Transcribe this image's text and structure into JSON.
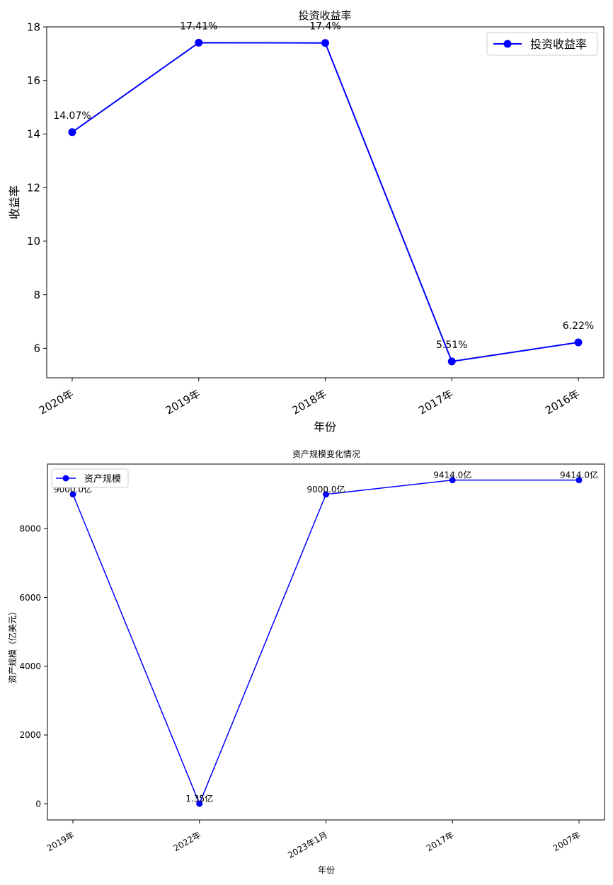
{
  "chart_data": [
    {
      "type": "line",
      "title": "投资收益率",
      "xlabel": "年份",
      "ylabel": "收益率",
      "categories": [
        "2020年",
        "2019年",
        "2018年",
        "2017年",
        "2016年"
      ],
      "series": [
        {
          "name": "投资收益率",
          "values": [
            14.07,
            17.41,
            17.4,
            5.51,
            6.22
          ],
          "color": "#0000ff"
        }
      ],
      "data_labels": [
        "14.07%",
        "17.41%",
        "17.4%",
        "5.51%",
        "6.22%"
      ],
      "ylim": [
        4.9,
        18.0
      ],
      "yticks": [
        6,
        8,
        10,
        12,
        14,
        16,
        18
      ],
      "ytick_labels": [
        "6",
        "8",
        "10",
        "12",
        "14",
        "16",
        "18"
      ],
      "grid": false,
      "legend_position": "top-right"
    },
    {
      "type": "line",
      "title": "资产规模变化情况",
      "xlabel": "年份",
      "ylabel": "资产规模（亿美元）",
      "categories": [
        "2019年",
        "2022年",
        "2023年1月",
        "2017年",
        "2007年"
      ],
      "series": [
        {
          "name": "资产规模",
          "values": [
            9000.0,
            1.35,
            9000.0,
            9414.0,
            9414.0
          ],
          "color": "#0000ff"
        }
      ],
      "data_labels": [
        "9000.0亿",
        "1.35亿",
        "9000.0亿",
        "9414.0亿",
        "9414.0亿"
      ],
      "ylim": [
        -470,
        9880
      ],
      "yticks": [
        0,
        2000,
        4000,
        6000,
        8000
      ],
      "ytick_labels": [
        "0",
        "2000",
        "4000",
        "6000",
        "8000"
      ],
      "grid": false,
      "legend_position": "top-left"
    }
  ]
}
